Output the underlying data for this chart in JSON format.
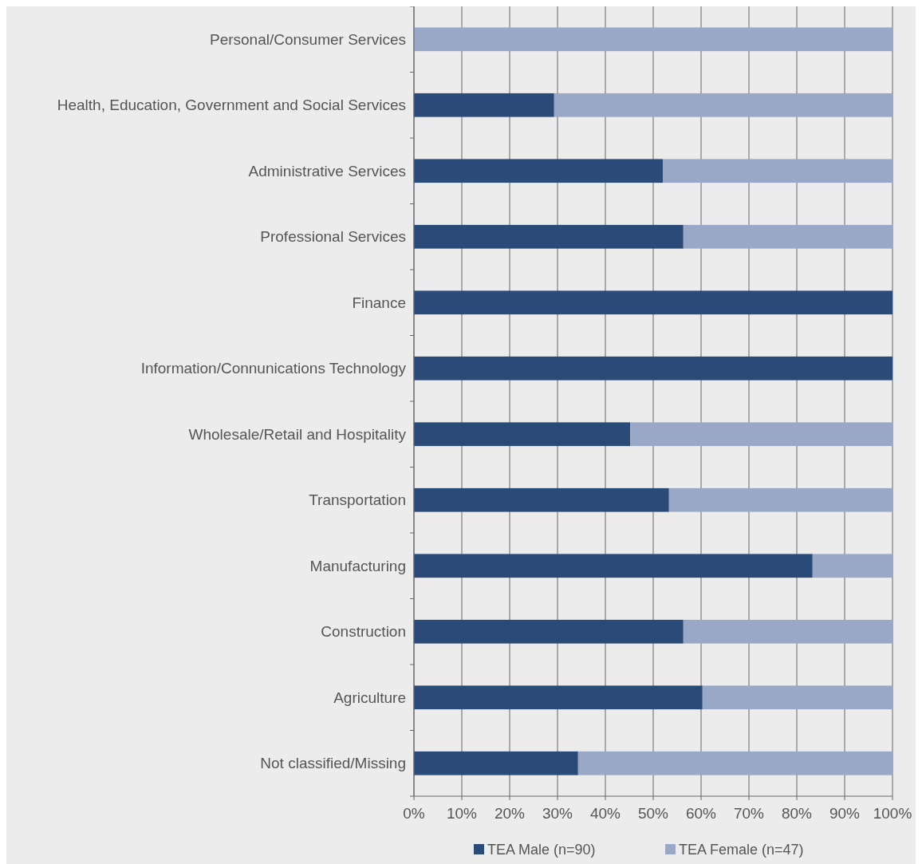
{
  "chart_data": {
    "type": "bar",
    "orientation": "horizontal",
    "stacked": true,
    "categories": [
      "Personal/Consumer Services",
      "Health, Education, Government and Social Services",
      "Administrative Services",
      "Professional Services",
      "Finance",
      "Information/Connunications Technology",
      "Wholesale/Retail and Hospitality",
      "Transportation",
      "Manufacturing",
      "Construction",
      "Agriculture",
      "Not classified/Missing"
    ],
    "series": [
      {
        "name": "TEA Male (n=90)",
        "color": "#2a4a78",
        "values": [
          0,
          29.3,
          52,
          56.3,
          100,
          100,
          45.2,
          53.3,
          83.3,
          56.3,
          60.3,
          34.3
        ]
      },
      {
        "name": "TEA Female (n=47)",
        "color": "#98a8c6",
        "values": [
          100,
          70.7,
          48,
          43.7,
          0,
          0,
          54.8,
          46.7,
          16.7,
          43.7,
          39.7,
          65.7
        ]
      }
    ],
    "xlim": [
      0,
      100
    ],
    "xticks": [
      {
        "value": 0,
        "label": "0%"
      },
      {
        "value": 10,
        "label": "10%"
      },
      {
        "value": 20,
        "label": "20%"
      },
      {
        "value": 30,
        "label": "30%"
      },
      {
        "value": 40,
        "label": "40%"
      },
      {
        "value": 50,
        "label": "50%"
      },
      {
        "value": 60,
        "label": "60%"
      },
      {
        "value": 70,
        "label": "70%"
      },
      {
        "value": 80,
        "label": "80%"
      },
      {
        "value": 90,
        "label": "90%"
      },
      {
        "value": 100,
        "label": "100%"
      }
    ],
    "grid": "x",
    "legend": "bottom"
  }
}
